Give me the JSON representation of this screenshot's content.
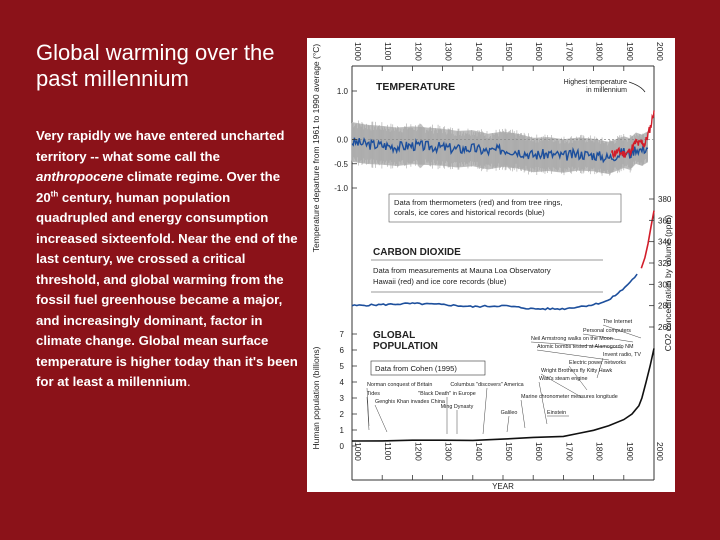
{
  "slide": {
    "title": "Global warming over the past millennium",
    "text_part1": "Very rapidly we have entered uncharted territory -- what some call the ",
    "text_italic": "anthropocene",
    "text_part2": " climate regime. Over the 20",
    "text_sup": "th",
    "text_part3": " century, human population quadrupled and energy consumption increased sixteenfold. Near the end of the last century, we crossed a critical threshold, and global warming from the fossil fuel greenhouse became a major, and increasingly dominant, factor in climate change. Global mean surface temperature is higher today than it's been for at least a millennium",
    "text_end": "."
  },
  "colors": {
    "background": "#8b1219",
    "thermometer_red": "#d21d2a",
    "proxy_blue": "#1d4f9c",
    "uncertainty_gray": "#bdbdbd"
  },
  "chart_data": {
    "type": "line",
    "x_axis": {
      "label": "YEAR",
      "range": [
        1000,
        2000
      ],
      "ticks": [
        "1000",
        "1100",
        "1200",
        "1300",
        "1400",
        "1500",
        "1600",
        "1700",
        "1800",
        "1900",
        "2000"
      ]
    },
    "panels": [
      {
        "name": "TEMPERATURE",
        "ylabel": "Temperature departure from 1961 to 1990 average (°C)",
        "ylim": [
          -1.2,
          1.3
        ],
        "ticks": [
          "1.0",
          "0.0",
          "-0.5",
          "-1.0"
        ],
        "annotation": "Highest temperature in millennium",
        "note": "Data from thermometers (red) and from tree rings, corals, ice cores and historical records (blue)",
        "series": [
          {
            "x": [
              1000,
              1050,
              1100,
              1150,
              1200,
              1250,
              1300,
              1350,
              1400,
              1450,
              1500,
              1550,
              1600,
              1650,
              1700,
              1750,
              1800,
              1850,
              1900,
              1920,
              1940,
              1960,
              1980
            ],
            "y": [
              -0.05,
              -0.1,
              -0.12,
              -0.15,
              -0.12,
              -0.14,
              -0.16,
              -0.2,
              -0.18,
              -0.25,
              -0.2,
              -0.24,
              -0.32,
              -0.3,
              -0.34,
              -0.3,
              -0.32,
              -0.38,
              -0.26,
              -0.3,
              -0.18,
              -0.22,
              -0.15
            ]
          },
          {
            "x": [
              1860,
              1880,
              1900,
              1920,
              1940,
              1950,
              1960,
              1970,
              1980,
              1990,
              2000
            ],
            "y": [
              -0.3,
              -0.25,
              -0.3,
              -0.25,
              -0.05,
              -0.1,
              -0.05,
              -0.1,
              0.1,
              0.3,
              0.6
            ]
          }
        ]
      },
      {
        "name": "CARBON DIOXIDE",
        "ylabel": "CO2 concentration by volume (ppm)",
        "ylim": [
          260,
          385
        ],
        "ticks": [
          "380",
          "360",
          "340",
          "320",
          "300",
          "280",
          "260"
        ],
        "note": "Data from measurements at Mauna Loa Observatory Hawaii (red) and ice core records (blue)",
        "series": [
          {
            "x": [
              1000,
              1100,
              1200,
              1300,
              1400,
              1500,
              1600,
              1700,
              1800,
              1850,
              1900,
              1950
            ],
            "y": [
              280,
              281,
              282,
              281,
              279,
              280,
              277,
              277,
              281,
              285,
              296,
              311
            ]
          },
          {
            "x": [
              1958,
              1970,
              1980,
              1990,
              2000
            ],
            "y": [
              315,
              325,
              338,
              354,
              369
            ]
          }
        ]
      },
      {
        "name": "GLOBAL POPULATION",
        "ylabel": "Human population (billions)",
        "ylim": [
          0,
          7
        ],
        "ticks": [
          "0",
          "1",
          "2",
          "3",
          "4",
          "5",
          "6",
          "7"
        ],
        "note": "Data from Cohen (1995)",
        "series": [
          {
            "x": [
              1000,
              1100,
              1200,
              1300,
              1400,
              1500,
              1600,
              1700,
              1750,
              1800,
              1850,
              1900,
              1927,
              1950,
              1960,
              1974,
              1987,
              2000
            ],
            "y": [
              0.31,
              0.32,
              0.36,
              0.36,
              0.35,
              0.43,
              0.54,
              0.6,
              0.79,
              0.98,
              1.26,
              1.65,
              2.0,
              2.52,
              3.0,
              4.0,
              5.0,
              6.1
            ]
          }
        ]
      }
    ],
    "events": [
      {
        "label": "Norman conquest of Britain"
      },
      {
        "label": "Tides"
      },
      {
        "label": "Genghis Khan invades China"
      },
      {
        "label": "\"Black Death\" in Europe"
      },
      {
        "label": "Ming Dynasty"
      },
      {
        "label": "Columbus \"discovers\" America"
      },
      {
        "label": "Galileo"
      },
      {
        "label": "Marine chronometer measures longitude"
      },
      {
        "label": "Watt's steam engine"
      },
      {
        "label": "Einstein"
      },
      {
        "label": "Wright Brothers fly Kitty Hawk"
      },
      {
        "label": "Electric power networks"
      },
      {
        "label": "Invent radio, TV"
      },
      {
        "label": "Atomic bombs tested at Alamogordo NM"
      },
      {
        "label": "Neil Armstrong walks on the Moon"
      },
      {
        "label": "Personal computers"
      },
      {
        "label": "The Internet"
      }
    ]
  }
}
